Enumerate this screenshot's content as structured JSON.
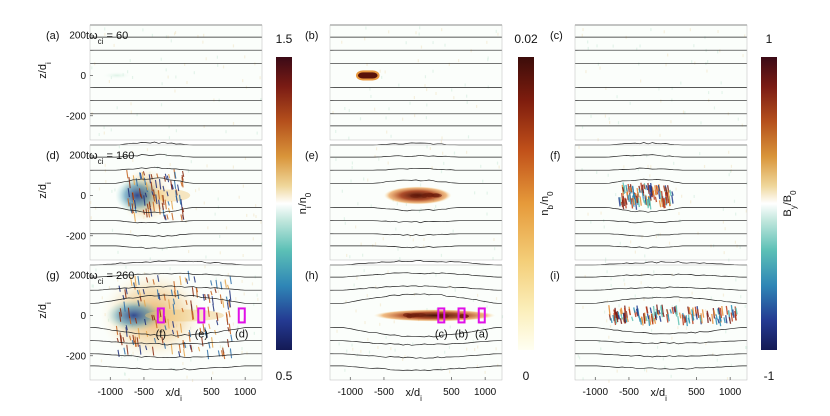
{
  "figure": {
    "panel_labels": [
      "(a)",
      "(b)",
      "(c)",
      "(d)",
      "(e)",
      "(f)",
      "(g)",
      "(h)",
      "(i)"
    ],
    "time_labels": [
      {
        "row": 0,
        "prefix": "tω",
        "sub": "ci",
        "value": "= 60"
      },
      {
        "row": 1,
        "prefix": "tω",
        "sub": "ci",
        "value": "= 160"
      },
      {
        "row": 2,
        "prefix": "tω",
        "sub": "ci",
        "value": "= 260"
      }
    ],
    "x_label": {
      "main": "x/d",
      "sub": "i"
    },
    "y_label": {
      "main": "z/d",
      "sub": "i"
    },
    "box_labels": [
      "(f)",
      "(e)",
      "(d)",
      "(c)",
      "(b)",
      "(a)"
    ]
  },
  "chart_data": [
    {
      "type": "heatmap",
      "quantity": "n_i/n_0",
      "colorbar": {
        "label_main": "n",
        "label_sub": "i",
        "label_tail": "/n",
        "label_tail_sub": "0",
        "min_label": "0.5",
        "max_label": "1.5",
        "range": [
          0.5,
          1.5
        ]
      },
      "xlim": [
        -1300,
        1250
      ],
      "ylim": [
        -320,
        250
      ],
      "xticks": [
        -1000,
        -500,
        500,
        1000
      ],
      "xtick_labels": [
        "-1000",
        "-500",
        "500",
        "1000"
      ],
      "yticks": [
        200,
        0,
        -200
      ],
      "ytick_labels": [
        "200",
        "0",
        "-200"
      ],
      "field_lines_z": [
        -250,
        -190,
        -125,
        -60,
        60,
        125,
        190,
        250
      ],
      "snapshots": [
        {
          "time": 60,
          "blob_extent_x": [
            -1100,
            -700
          ],
          "amplitude": 0.03
        },
        {
          "time": 160,
          "blob_extent_x": [
            -800,
            150
          ],
          "amplitude": 0.9
        },
        {
          "time": 260,
          "blob_extent_x": [
            -1050,
            900
          ],
          "amplitude": 0.9
        }
      ],
      "sample_boxes": [
        {
          "label": "(f)",
          "x": -250,
          "z": 0
        },
        {
          "label": "(e)",
          "x": 350,
          "z": 0
        },
        {
          "label": "(d)",
          "x": 950,
          "z": 0
        }
      ]
    },
    {
      "type": "heatmap",
      "quantity": "n_b/n_0",
      "colorbar": {
        "label_main": "n",
        "label_sub": "b",
        "label_tail": "/n",
        "label_tail_sub": "0",
        "min_label": "0",
        "max_label": "0.02",
        "range": [
          0,
          0.02
        ]
      },
      "xlim": [
        -1300,
        1250
      ],
      "ylim": [
        -320,
        250
      ],
      "xticks": [
        -1000,
        -500,
        500,
        1000
      ],
      "xtick_labels": [
        "-1000",
        "-500",
        "500",
        "1000"
      ],
      "yticks": [
        200,
        0,
        -200
      ],
      "snapshots": [
        {
          "time": 60,
          "beam_extent_x": [
            -900,
            -580
          ],
          "beam_halfwidth_z": 25
        },
        {
          "time": 160,
          "beam_extent_x": [
            -500,
            500
          ],
          "beam_halfwidth_z": 22
        },
        {
          "time": 260,
          "beam_extent_x": [
            -650,
            1150
          ],
          "beam_halfwidth_z": 20
        }
      ],
      "sample_boxes": [
        {
          "label": "(c)",
          "x": 350,
          "z": 0
        },
        {
          "label": "(b)",
          "x": 650,
          "z": 0
        },
        {
          "label": "(a)",
          "x": 950,
          "z": 0
        }
      ]
    },
    {
      "type": "heatmap",
      "quantity": "B_y/B_0",
      "colorbar": {
        "label_main": "B",
        "label_sub": "y",
        "label_tail": "/B",
        "label_tail_sub": "0",
        "min_label": "-1",
        "max_label": "1",
        "range": [
          -1,
          1
        ]
      },
      "xlim": [
        -1300,
        1250
      ],
      "ylim": [
        -320,
        250
      ],
      "xticks": [
        -1000,
        -500,
        500,
        1000
      ],
      "xtick_labels": [
        "-1000",
        "-500",
        "500",
        "1000"
      ],
      "yticks": [
        200,
        0,
        -200
      ],
      "snapshots": [
        {
          "time": 60,
          "amplitude": 0.05
        },
        {
          "time": 160,
          "wave_extent_x": [
            -650,
            150
          ],
          "amplitude": 0.8
        },
        {
          "time": 260,
          "wave_extent_x": [
            -800,
            1100
          ],
          "amplitude": 0.8
        }
      ]
    }
  ]
}
